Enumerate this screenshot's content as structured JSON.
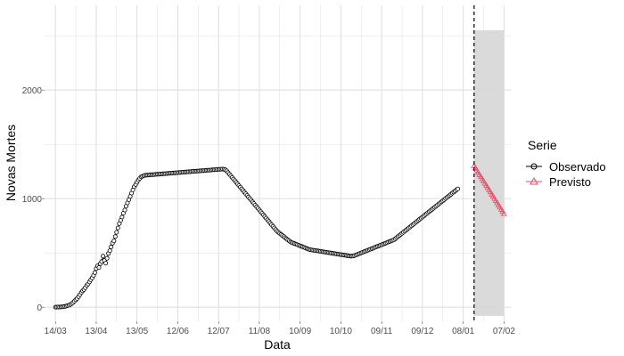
{
  "chart_data": {
    "type": "line",
    "xlabel": "Data",
    "ylabel": "Novas Mortes",
    "ylim": [
      -130,
      2780
    ],
    "xlim_days": [
      -8,
      335
    ],
    "y_ticks": [
      0,
      1000,
      2000
    ],
    "y_tick_labels": [
      "0",
      "1000",
      "2000"
    ],
    "x_ticks": [
      "14/03",
      "13/04",
      "13/05",
      "12/06",
      "12/07",
      "11/08",
      "10/09",
      "10/10",
      "09/11",
      "09/12",
      "08/01",
      "07/02"
    ],
    "grid": true,
    "forecast_start": "16/01",
    "legend": {
      "title": "Serie",
      "position": "right",
      "entries": [
        "Observado",
        "Previsto"
      ]
    },
    "colors": {
      "observed": "#000000",
      "forecast": "#e2506b",
      "band": "#d6d6d6",
      "grid": "#dedede"
    },
    "start_date": "14/03",
    "series": [
      {
        "name": "Observado",
        "x_start": 0,
        "values": [
          0,
          0,
          1,
          1,
          2,
          3,
          5,
          7,
          10,
          14,
          18,
          25,
          33,
          42,
          55,
          68,
          80,
          96,
          115,
          135,
          150,
          163,
          180,
          200,
          214,
          232,
          252,
          270,
          292,
          318,
          355,
          380,
          365,
          400,
          420,
          470,
          430,
          405,
          450,
          495,
          520,
          555,
          590,
          610,
          650,
          690,
          730,
          770,
          800,
          830,
          865,
          895,
          930,
          960,
          990,
          1020,
          1050,
          1080,
          1110,
          1130,
          1150,
          1170,
          1185,
          1200,
          1205,
          1210,
          1214,
          1216,
          1217,
          1218,
          1219,
          1220,
          1221,
          1222,
          1223,
          1224,
          1225,
          1226,
          1227,
          1228,
          1229,
          1230,
          1231,
          1232,
          1233,
          1234,
          1235,
          1236,
          1237,
          1238,
          1239,
          1240,
          1241,
          1242,
          1243,
          1244,
          1245,
          1246,
          1247,
          1248,
          1249,
          1250,
          1251,
          1252,
          1253,
          1254,
          1255,
          1256,
          1257,
          1258,
          1259,
          1260,
          1261,
          1262,
          1263,
          1264,
          1265,
          1266,
          1267,
          1268,
          1269,
          1270,
          1271,
          1272,
          1270,
          1265,
          1255,
          1240,
          1225,
          1210,
          1195,
          1180,
          1165,
          1150,
          1135,
          1120,
          1105,
          1090,
          1075,
          1060,
          1045,
          1030,
          1015,
          1000,
          985,
          970,
          955,
          940,
          925,
          910,
          895,
          880,
          865,
          850,
          835,
          820,
          805,
          790,
          775,
          760,
          745,
          730,
          715,
          700,
          690,
          680,
          670,
          660,
          650,
          640,
          630,
          620,
          610,
          600,
          595,
          590,
          585,
          580,
          575,
          570,
          565,
          560,
          555,
          550,
          545,
          540,
          535,
          530,
          528,
          526,
          524,
          522,
          520,
          518,
          516,
          514,
          512,
          510,
          508,
          506,
          504,
          502,
          500,
          498,
          496,
          494,
          492,
          490,
          488,
          486,
          484,
          482,
          480,
          478,
          476,
          474,
          472,
          470,
          470,
          472,
          475,
          480,
          485,
          490,
          495,
          500,
          505,
          510,
          515,
          520,
          525,
          530,
          535,
          540,
          545,
          550,
          555,
          560,
          565,
          570,
          575,
          580,
          585,
          590,
          595,
          600,
          605,
          610,
          615,
          620,
          630,
          640,
          650,
          660,
          670,
          680,
          690,
          700,
          710,
          720,
          730,
          740,
          750,
          760,
          770,
          780,
          790,
          800,
          810,
          820,
          830,
          840,
          850,
          860,
          870,
          880,
          890,
          900,
          910,
          920,
          930,
          940,
          950,
          960,
          970,
          980,
          990,
          1000,
          1010,
          1020,
          1030,
          1040,
          1050,
          1060,
          1070,
          1080,
          1090
        ]
      },
      {
        "name": "Previsto",
        "x_start": 308,
        "values": [
          1300,
          1280,
          1260,
          1240,
          1220,
          1200,
          1180,
          1160,
          1140,
          1120,
          1100,
          1080,
          1060,
          1040,
          1020,
          1000,
          980,
          960,
          940,
          920,
          900,
          880,
          860
        ]
      }
    ]
  }
}
